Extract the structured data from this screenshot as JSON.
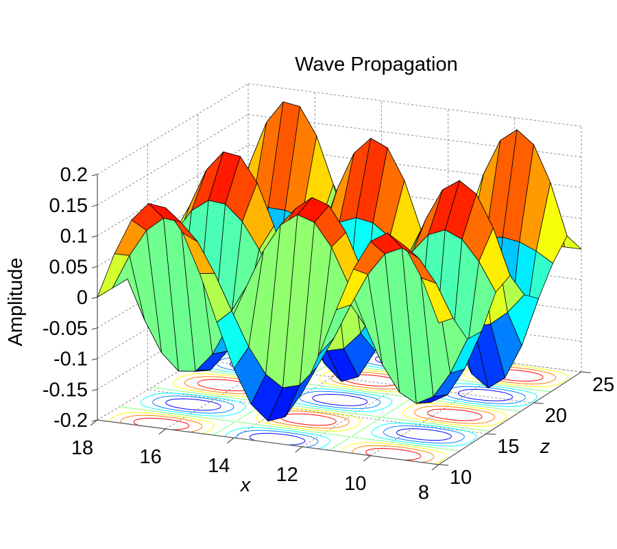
{
  "chart_data": {
    "type": "surface3d",
    "title": "Wave Propagation",
    "xlabel": "x",
    "ylabel": "z",
    "zlabel": "Amplitude",
    "xlim": [
      8,
      18
    ],
    "ylim": [
      10,
      25
    ],
    "zlim": [
      -0.2,
      0.2
    ],
    "x_ticks": [
      "18",
      "16",
      "14",
      "12",
      "10",
      "8"
    ],
    "x_tick_values": [
      18,
      16,
      14,
      12,
      10,
      8
    ],
    "y_ticks": [
      "10",
      "15",
      "20",
      "25"
    ],
    "y_tick_values": [
      10,
      15,
      20,
      25
    ],
    "z_ticks": [
      "0.2",
      "0.15",
      "0.1",
      "0.05",
      "0",
      "-0.05",
      "-0.1",
      "-0.15",
      "-0.2"
    ],
    "z_tick_values": [
      0.2,
      0.15,
      0.1,
      0.05,
      0,
      -0.05,
      -0.1,
      -0.15,
      -0.2
    ],
    "surface": {
      "function": "amplitude * cos(pi*(x - x_peak)/x_half_period) * cos(pi*(z - z_peak)/z_half_period)",
      "amplitude": 0.2,
      "x_peak": 16.3,
      "x_half_period": 3.4,
      "z_peak": 10.6,
      "z_half_period": 3.2,
      "x_step": 0.5,
      "z_step": 1.5
    },
    "contour_floor": {
      "levels": [
        -0.15,
        -0.1,
        -0.05,
        0,
        0.05,
        0.1,
        0.15
      ],
      "plane": -0.2
    },
    "colormap": "jet",
    "grid": true,
    "edge_color": "#000000"
  }
}
